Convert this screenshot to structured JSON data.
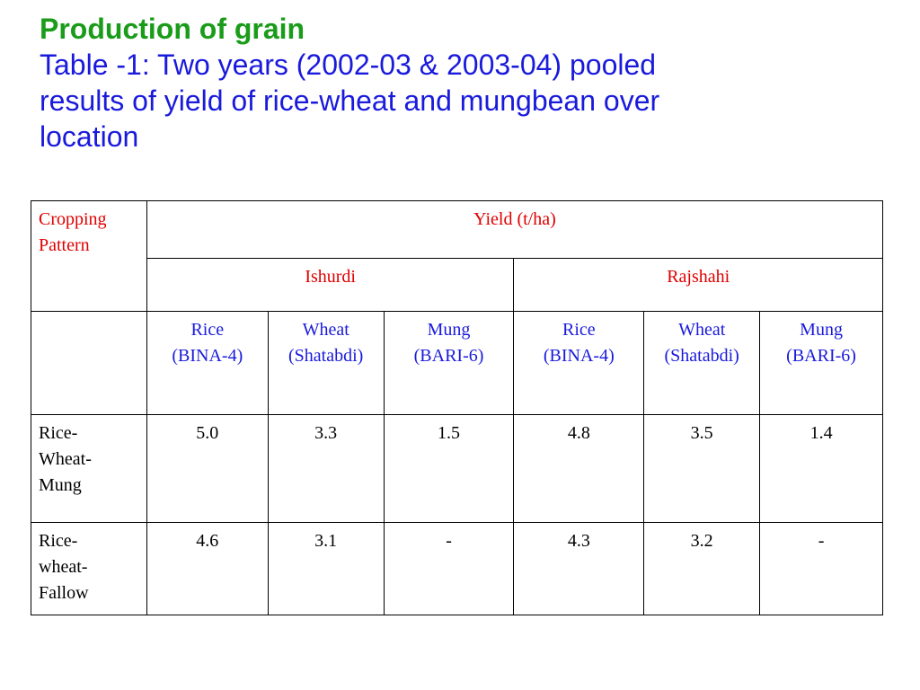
{
  "heading": {
    "title": "Production of grain",
    "subtitle_line1": "Table -1: Two years (2002-03 & 2003-04) pooled",
    "subtitle_line2": "results of yield of rice-wheat and mungbean over",
    "subtitle_line3": "location"
  },
  "table": {
    "header": {
      "cropping_pattern_line1": "Cropping",
      "cropping_pattern_line2": "Pattern",
      "yield": "Yield (t/ha)",
      "locations": [
        "Ishurdi",
        "Rajshahi"
      ],
      "crops": [
        {
          "line1": "Rice",
          "line2": "(BINA-4)"
        },
        {
          "line1": "Wheat",
          "line2": "(Shatabdi)"
        },
        {
          "line1": "Mung",
          "line2": "(BARI-6)"
        },
        {
          "line1": "Rice",
          "line2": "(BINA-4)"
        },
        {
          "line1": "Wheat",
          "line2": "(Shatabdi)"
        },
        {
          "line1": "Mung",
          "line2": "(BARI-6)"
        }
      ]
    },
    "rows": [
      {
        "pattern": [
          "Rice-",
          "Wheat-",
          "Mung"
        ],
        "values": [
          "5.0",
          "3.3",
          "1.5",
          "4.8",
          "3.5",
          "1.4"
        ]
      },
      {
        "pattern": [
          "Rice-",
          "wheat-",
          "Fallow"
        ],
        "values": [
          "4.6",
          "3.1",
          "-",
          "4.3",
          "3.2",
          "-"
        ]
      }
    ]
  },
  "colors": {
    "heading_green": "#1a9c1a",
    "heading_blue": "#1a1adc",
    "header_red": "#e00000",
    "crop_blue": "#1a1adc"
  }
}
